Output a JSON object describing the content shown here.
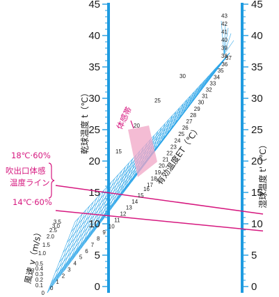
{
  "chart_data": {
    "type": "nomogram",
    "left_axis": {
      "title": "乾球温度 t（℃）",
      "min": 0,
      "max": 45,
      "ticks": [
        0,
        5,
        10,
        15,
        20,
        25,
        30,
        35,
        40,
        45
      ]
    },
    "right_axis": {
      "title": "湿球温度 t'（℃）",
      "min": 0,
      "max": 45,
      "ticks": [
        0,
        5,
        10,
        15,
        20,
        25,
        30,
        35,
        40,
        45
      ]
    },
    "effective_temperature": {
      "title": "有効温度ET（℃）",
      "labels": [
        0,
        1,
        2,
        3,
        4,
        5,
        6,
        7,
        8,
        9,
        10,
        11,
        12,
        13,
        14,
        15,
        16,
        17,
        18,
        19,
        20,
        21,
        22,
        23,
        24,
        25,
        26,
        27,
        28,
        29,
        30,
        31,
        32,
        33,
        34,
        35,
        36,
        37,
        38,
        39,
        40,
        41,
        42,
        43
      ],
      "upper_labels": [
        15,
        20,
        25,
        30
      ]
    },
    "wind_speed": {
      "title": "風速 v（m/s）",
      "labels": [
        "0",
        "0.1",
        "0.2",
        "0.3",
        "0.4",
        "0.5",
        "1.0",
        "1.5",
        "2.0",
        "2.5",
        "3.0",
        "3.5"
      ]
    },
    "comfort_zone": {
      "label": "体感帯"
    },
    "supply_air_lines": [
      {
        "label": "18℃·60%",
        "dry_bulb": 18,
        "wet_bulb": 12
      },
      {
        "label": "14℃·60%",
        "dry_bulb": 14,
        "wet_bulb": 9.3
      }
    ],
    "supply_air_bracket_label": [
      "吹出口体感",
      "温度ライン"
    ],
    "colors": {
      "axis": "#1e9be0",
      "grid": "#2aa4e8",
      "pink": "#d6187f",
      "zone": "#f0a6c5"
    }
  }
}
